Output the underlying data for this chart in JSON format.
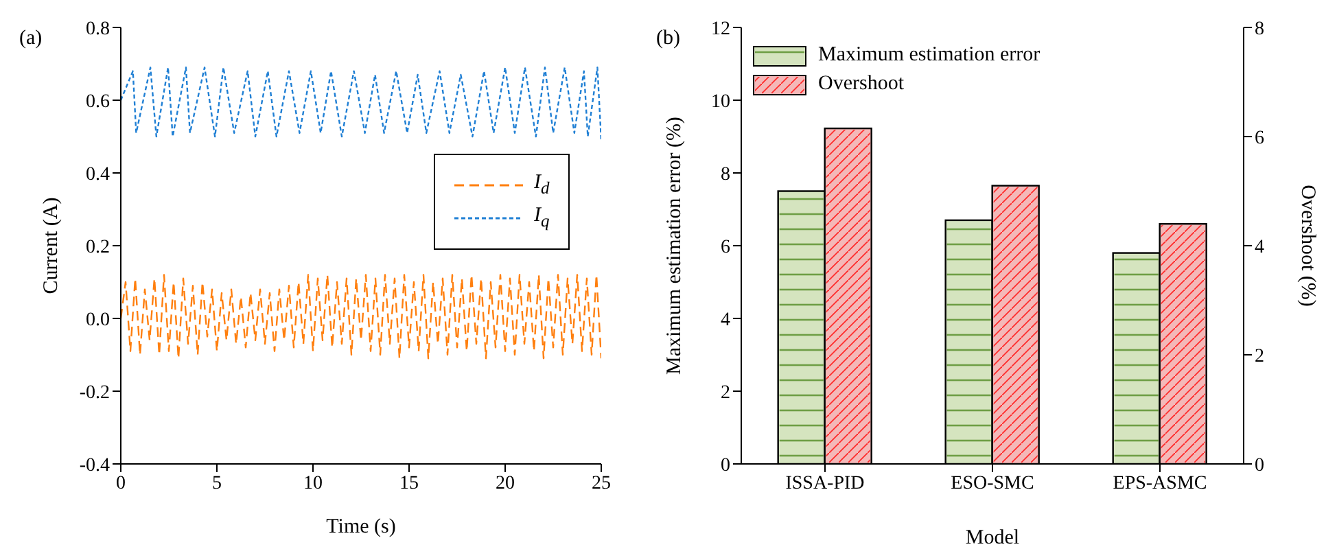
{
  "chart_data": [
    {
      "type": "line",
      "xlabel": "Time (s)",
      "ylabel": "Current (A)",
      "annotations": [
        "(a)"
      ],
      "xlim": [
        0,
        25
      ],
      "xticks": [
        0,
        5,
        10,
        15,
        20,
        25
      ],
      "ylim": [
        -0.4,
        0.8
      ],
      "yticks": [
        -0.4,
        -0.2,
        {
          "value": 0,
          "label": "0.0"
        },
        0.2,
        0.4,
        0.6,
        0.8
      ],
      "legend": "right",
      "grid": false,
      "series": [
        {
          "name": "I$_{d}$",
          "color": "#ff7f0e",
          "line_style": "dashed",
          "x": [
            0,
            0.25,
            0.5,
            0.75,
            1,
            1.25,
            1.5,
            1.75,
            2,
            2.25,
            2.5,
            2.75,
            3,
            3.25,
            3.5,
            3.75,
            4,
            4.25,
            4.5,
            4.75,
            5,
            5.25,
            5.5,
            5.75,
            6,
            6.25,
            6.5,
            6.75,
            7,
            7.25,
            7.5,
            7.75,
            8,
            8.25,
            8.5,
            8.75,
            9,
            9.25,
            9.5,
            9.75,
            10,
            10.25,
            10.5,
            10.75,
            11,
            11.25,
            11.5,
            11.75,
            12,
            12.25,
            12.5,
            12.75,
            13,
            13.25,
            13.5,
            13.75,
            14,
            14.25,
            14.5,
            14.75,
            15,
            15.25,
            15.5,
            15.75,
            16,
            16.25,
            16.5,
            16.75,
            17,
            17.25,
            17.5,
            17.75,
            18,
            18.25,
            18.5,
            18.75,
            19,
            19.25,
            19.5,
            19.75,
            20,
            20.25,
            20.5,
            20.75,
            21,
            21.25,
            21.5,
            21.75,
            22,
            22.25,
            22.5,
            22.75,
            23,
            23.25,
            23.5,
            23.75,
            24,
            24.25,
            24.5,
            24.75,
            25
          ],
          "values": [
            0,
            0.1,
            -0.09,
            0.11,
            -0.1,
            0.08,
            -0.06,
            0.11,
            -0.1,
            0.12,
            -0.09,
            0.1,
            -0.11,
            0.11,
            -0.07,
            0.09,
            -0.1,
            0.1,
            -0.05,
            0.08,
            -0.09,
            0.07,
            -0.06,
            0.08,
            -0.07,
            0.06,
            -0.08,
            0.07,
            -0.06,
            0.08,
            -0.07,
            0.07,
            -0.09,
            0.08,
            -0.06,
            0.09,
            -0.08,
            0.1,
            -0.07,
            0.12,
            -0.09,
            0.11,
            -0.06,
            0.12,
            -0.08,
            0.1,
            -0.07,
            0.11,
            -0.1,
            0.11,
            -0.06,
            0.12,
            -0.09,
            0.11,
            -0.1,
            0.12,
            -0.07,
            0.11,
            -0.11,
            0.12,
            -0.08,
            0.1,
            -0.09,
            0.12,
            -0.11,
            0.1,
            -0.07,
            0.11,
            -0.1,
            0.12,
            -0.08,
            0.11,
            -0.09,
            0.12,
            -0.07,
            0.11,
            -0.11,
            0.1,
            -0.08,
            0.12,
            -0.09,
            0.11,
            -0.1,
            0.12,
            -0.07,
            0.1,
            -0.09,
            0.12,
            -0.11,
            0.11,
            -0.08,
            0.12,
            -0.1,
            0.11,
            -0.07,
            0.12,
            -0.09,
            0.11,
            -0.1,
            0.12,
            -0.11
          ]
        },
        {
          "name": "I$_{q}$",
          "color": "#1f7fd4",
          "line_style": "dotted",
          "x": [
            0,
            0.63,
            0.8,
            1.54,
            1.85,
            2.46,
            2.7,
            3.39,
            3.6,
            4.36,
            4.9,
            5.34,
            5.9,
            6.6,
            7,
            7.65,
            8.1,
            8.75,
            9.3,
            9.89,
            10.4,
            10.94,
            11.5,
            12.13,
            12.7,
            13.23,
            13.7,
            14.33,
            14.9,
            15.45,
            15.9,
            16.59,
            17.1,
            17.69,
            18.3,
            18.9,
            19.4,
            20,
            20.5,
            21.03,
            21.6,
            22.07,
            22.5,
            23.1,
            23.6,
            24.1,
            24.3,
            24.8,
            25
          ],
          "values": [
            0.6,
            0.68,
            0.51,
            0.69,
            0.5,
            0.69,
            0.5,
            0.69,
            0.51,
            0.69,
            0.5,
            0.69,
            0.51,
            0.68,
            0.5,
            0.68,
            0.5,
            0.68,
            0.51,
            0.68,
            0.51,
            0.68,
            0.5,
            0.68,
            0.51,
            0.67,
            0.51,
            0.68,
            0.51,
            0.67,
            0.51,
            0.68,
            0.51,
            0.67,
            0.5,
            0.68,
            0.51,
            0.69,
            0.51,
            0.69,
            0.5,
            0.69,
            0.51,
            0.69,
            0.51,
            0.68,
            0.5,
            0.69,
            0.49
          ]
        }
      ]
    },
    {
      "type": "bar",
      "xlabel": "Model",
      "ylabel": "Maximum estimation error (%)",
      "y2label": "Overshoot (%)",
      "annotations": [
        "(b)"
      ],
      "categories": [
        "ISSA-PID",
        "ESO-SMC",
        "EPS-ASMC"
      ],
      "ylim": [
        0,
        12
      ],
      "yticks": [
        0,
        2,
        4,
        6,
        8,
        10,
        12
      ],
      "y2lim": [
        0,
        8
      ],
      "y2ticks": [
        0,
        2,
        4,
        6,
        8
      ],
      "legend": "top left",
      "grid": false,
      "series": [
        {
          "name": "Maximum estimation error",
          "color": "#d5e4bf",
          "values": [
            7.5,
            6.7,
            5.8
          ]
        },
        {
          "name": "Overshoot",
          "color": "#f4b8b8",
          "axis": "y2",
          "values": [
            6.15,
            5.1,
            4.4
          ]
        }
      ]
    }
  ]
}
